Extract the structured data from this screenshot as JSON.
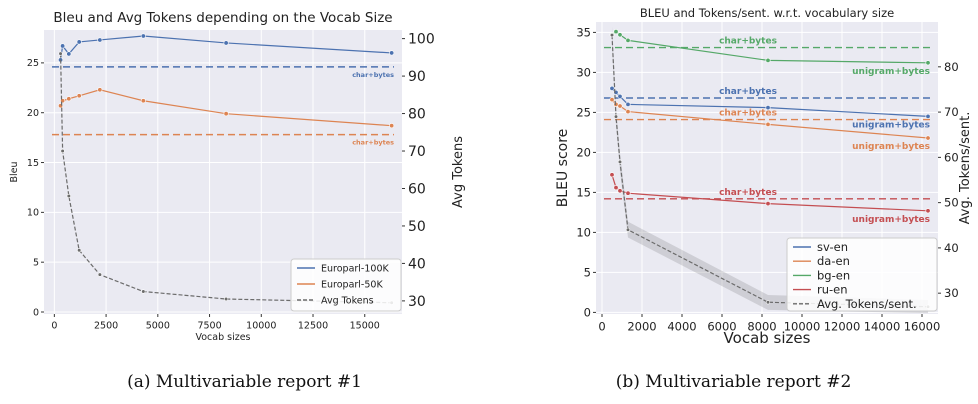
{
  "captions": [
    "(a) Multivariable report #1",
    "(b) Multivariable report #2"
  ],
  "colors": {
    "blue": "#4c72b0",
    "orange": "#dd8452",
    "green": "#55a868",
    "red": "#c44e52",
    "gray": "#6b6b6b",
    "plot_bg": "#eaeaf2"
  },
  "chart_data": [
    {
      "type": "line",
      "title": "Bleu and Avg Tokens depending on the Vocab Size",
      "xlabel": "Vocab sizes",
      "ylabel": "Bleu",
      "y2label": "Avg Tokens",
      "xlim": [
        -500,
        16800
      ],
      "ylim": [
        -0.2,
        28.3
      ],
      "y2lim": [
        26.5,
        102.3
      ],
      "xticks": [
        0,
        2500,
        5000,
        7500,
        10000,
        12500,
        15000
      ],
      "yticks": [
        0,
        5,
        10,
        15,
        20,
        25
      ],
      "y2ticks": [
        30,
        40,
        50,
        60,
        70,
        80,
        90,
        100
      ],
      "grid": true,
      "legend_position": "lower-right",
      "series": [
        {
          "name": "Europarl-100K",
          "color": "blue",
          "axis": "left",
          "x": [
            300,
            400,
            700,
            1200,
            2200,
            4300,
            8300,
            16300
          ],
          "y": [
            25.3,
            26.7,
            25.9,
            27.1,
            27.3,
            27.7,
            27.0,
            26.0
          ]
        },
        {
          "name": "Europarl-50K",
          "color": "orange",
          "axis": "left",
          "x": [
            300,
            400,
            700,
            1200,
            2200,
            4300,
            8300,
            16300
          ],
          "y": [
            20.7,
            21.2,
            21.4,
            21.7,
            22.3,
            21.2,
            19.9,
            18.7
          ]
        },
        {
          "name": "Avg Tokens",
          "color": "gray",
          "axis": "right",
          "dashed": true,
          "x": [
            300,
            400,
            700,
            1200,
            2200,
            4300,
            8300,
            16300
          ],
          "y": [
            96,
            70,
            58,
            43.5,
            37,
            32.5,
            30.5,
            29.5
          ]
        }
      ],
      "baselines": [
        {
          "label": "char+bytes",
          "color": "blue",
          "value": 24.6
        },
        {
          "label": "char+bytes",
          "color": "orange",
          "value": 17.8
        }
      ]
    },
    {
      "type": "line",
      "title": "BLEU and Tokens/sent. w.r.t. vocabulary size",
      "xlabel": "Vocab sizes",
      "ylabel": "BLEU score",
      "y2label": "Avg. Tokens/sent.",
      "xlim": [
        -300,
        16800
      ],
      "ylim": [
        -0.2,
        36.3
      ],
      "y2lim": [
        25.4,
        89.9
      ],
      "xticks": [
        0,
        2000,
        4000,
        6000,
        8000,
        10000,
        12000,
        14000,
        16000
      ],
      "yticks": [
        0,
        5,
        10,
        15,
        20,
        25,
        30,
        35
      ],
      "y2ticks": [
        30,
        40,
        50,
        60,
        70,
        80
      ],
      "grid": true,
      "legend_position": "lower-right",
      "series": [
        {
          "name": "sv-en",
          "color": "blue",
          "axis": "left",
          "x": [
            500,
            700,
            900,
            1300,
            8300,
            16300
          ],
          "y": [
            28.0,
            27.5,
            27.0,
            26.0,
            25.6,
            24.5
          ]
        },
        {
          "name": "da-en",
          "color": "orange",
          "axis": "left",
          "x": [
            500,
            700,
            900,
            1300,
            8300,
            16300
          ],
          "y": [
            26.6,
            26.0,
            25.8,
            25.1,
            23.5,
            21.8
          ]
        },
        {
          "name": "bg-en",
          "color": "green",
          "axis": "left",
          "x": [
            500,
            700,
            900,
            1300,
            8300,
            16300
          ],
          "y": [
            34.7,
            35.1,
            34.7,
            34.0,
            31.5,
            31.2
          ]
        },
        {
          "name": "ru-en",
          "color": "red",
          "axis": "left",
          "x": [
            500,
            700,
            900,
            1300,
            8300,
            16300
          ],
          "y": [
            17.2,
            15.6,
            15.2,
            14.9,
            13.6,
            12.7
          ]
        },
        {
          "name": "Avg. Tokens/sent.",
          "color": "gray",
          "axis": "right",
          "dashed": true,
          "x": [
            500,
            700,
            900,
            1300,
            8300,
            16300
          ],
          "y": [
            87,
            69,
            59,
            44,
            28,
            27
          ],
          "band": {
            "lower": [
              85,
              67,
              57,
              42.3,
              26.3,
              25.6
            ],
            "upper": [
              89,
              71,
              61,
              45.8,
              29.6,
              28.5
            ]
          }
        }
      ],
      "baselines": [
        {
          "label": "char+bytes",
          "color": "green",
          "value": 33.1
        },
        {
          "label": "char+bytes",
          "color": "blue",
          "value": 26.8
        },
        {
          "label": "char+bytes",
          "color": "orange",
          "value": 24.1
        },
        {
          "label": "char+bytes",
          "color": "red",
          "value": 14.2
        }
      ],
      "end_labels": [
        {
          "label": "unigram+bytes",
          "color": "green"
        },
        {
          "label": "unigram+bytes",
          "color": "blue"
        },
        {
          "label": "unigram+bytes",
          "color": "orange"
        },
        {
          "label": "unigram+bytes",
          "color": "red"
        }
      ]
    }
  ]
}
